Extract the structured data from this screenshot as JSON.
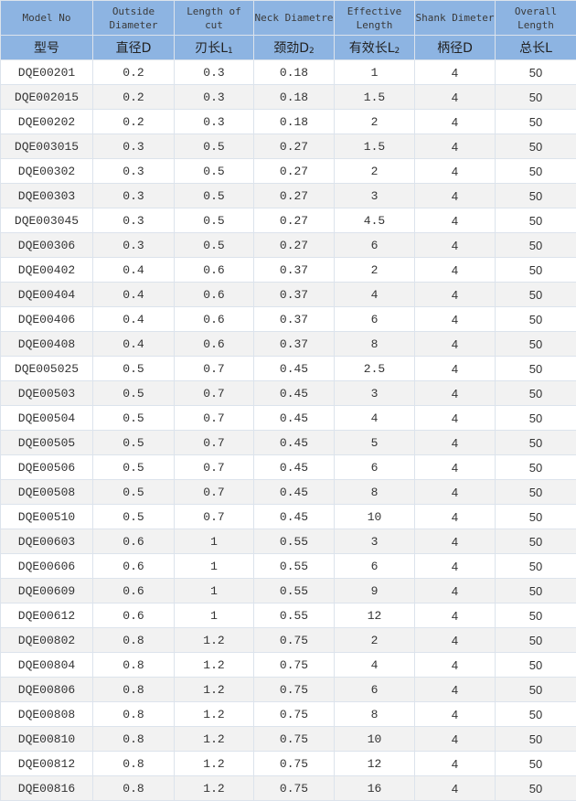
{
  "headers": [
    {
      "en": "Model No",
      "cn": "型号",
      "sub": ""
    },
    {
      "en": "Outside Diameter",
      "cn": "直径D",
      "sub": ""
    },
    {
      "en": "Length of cut",
      "cn": "刃长L",
      "sub": "1"
    },
    {
      "en": "Neck Diametre",
      "cn": "颈劲D",
      "sub": "2"
    },
    {
      "en": "Effective Length",
      "cn": "有效长L",
      "sub": "2"
    },
    {
      "en": "Shank Dimeter",
      "cn": "柄径D",
      "sub": ""
    },
    {
      "en": "Overall Length",
      "cn": "总长L",
      "sub": ""
    }
  ],
  "rows": [
    [
      "DQE00201",
      "0.2",
      "0.3",
      "0.18",
      "1",
      "4",
      "50"
    ],
    [
      "DQE002015",
      "0.2",
      "0.3",
      "0.18",
      "1.5",
      "4",
      "50"
    ],
    [
      "DQE00202",
      "0.2",
      "0.3",
      "0.18",
      "2",
      "4",
      "50"
    ],
    [
      "DQE003015",
      "0.3",
      "0.5",
      "0.27",
      "1.5",
      "4",
      "50"
    ],
    [
      "DQE00302",
      "0.3",
      "0.5",
      "0.27",
      "2",
      "4",
      "50"
    ],
    [
      "DQE00303",
      "0.3",
      "0.5",
      "0.27",
      "3",
      "4",
      "50"
    ],
    [
      "DQE003045",
      "0.3",
      "0.5",
      "0.27",
      "4.5",
      "4",
      "50"
    ],
    [
      "DQE00306",
      "0.3",
      "0.5",
      "0.27",
      "6",
      "4",
      "50"
    ],
    [
      "DQE00402",
      "0.4",
      "0.6",
      "0.37",
      "2",
      "4",
      "50"
    ],
    [
      "DQE00404",
      "0.4",
      "0.6",
      "0.37",
      "4",
      "4",
      "50"
    ],
    [
      "DQE00406",
      "0.4",
      "0.6",
      "0.37",
      "6",
      "4",
      "50"
    ],
    [
      "DQE00408",
      "0.4",
      "0.6",
      "0.37",
      "8",
      "4",
      "50"
    ],
    [
      "DQE005025",
      "0.5",
      "0.7",
      "0.45",
      "2.5",
      "4",
      "50"
    ],
    [
      "DQE00503",
      "0.5",
      "0.7",
      "0.45",
      "3",
      "4",
      "50"
    ],
    [
      "DQE00504",
      "0.5",
      "0.7",
      "0.45",
      "4",
      "4",
      "50"
    ],
    [
      "DQE00505",
      "0.5",
      "0.7",
      "0.45",
      "5",
      "4",
      "50"
    ],
    [
      "DQE00506",
      "0.5",
      "0.7",
      "0.45",
      "6",
      "4",
      "50"
    ],
    [
      "DQE00508",
      "0.5",
      "0.7",
      "0.45",
      "8",
      "4",
      "50"
    ],
    [
      "DQE00510",
      "0.5",
      "0.7",
      "0.45",
      "10",
      "4",
      "50"
    ],
    [
      "DQE00603",
      "0.6",
      "1",
      "0.55",
      "3",
      "4",
      "50"
    ],
    [
      "DQE00606",
      "0.6",
      "1",
      "0.55",
      "6",
      "4",
      "50"
    ],
    [
      "DQE00609",
      "0.6",
      "1",
      "0.55",
      "9",
      "4",
      "50"
    ],
    [
      "DQE00612",
      "0.6",
      "1",
      "0.55",
      "12",
      "4",
      "50"
    ],
    [
      "DQE00802",
      "0.8",
      "1.2",
      "0.75",
      "2",
      "4",
      "50"
    ],
    [
      "DQE00804",
      "0.8",
      "1.2",
      "0.75",
      "4",
      "4",
      "50"
    ],
    [
      "DQE00806",
      "0.8",
      "1.2",
      "0.75",
      "6",
      "4",
      "50"
    ],
    [
      "DQE00808",
      "0.8",
      "1.2",
      "0.75",
      "8",
      "4",
      "50"
    ],
    [
      "DQE00810",
      "0.8",
      "1.2",
      "0.75",
      "10",
      "4",
      "50"
    ],
    [
      "DQE00812",
      "0.8",
      "1.2",
      "0.75",
      "12",
      "4",
      "50"
    ],
    [
      "DQE00816",
      "0.8",
      "1.2",
      "0.75",
      "16",
      "4",
      "50"
    ]
  ]
}
